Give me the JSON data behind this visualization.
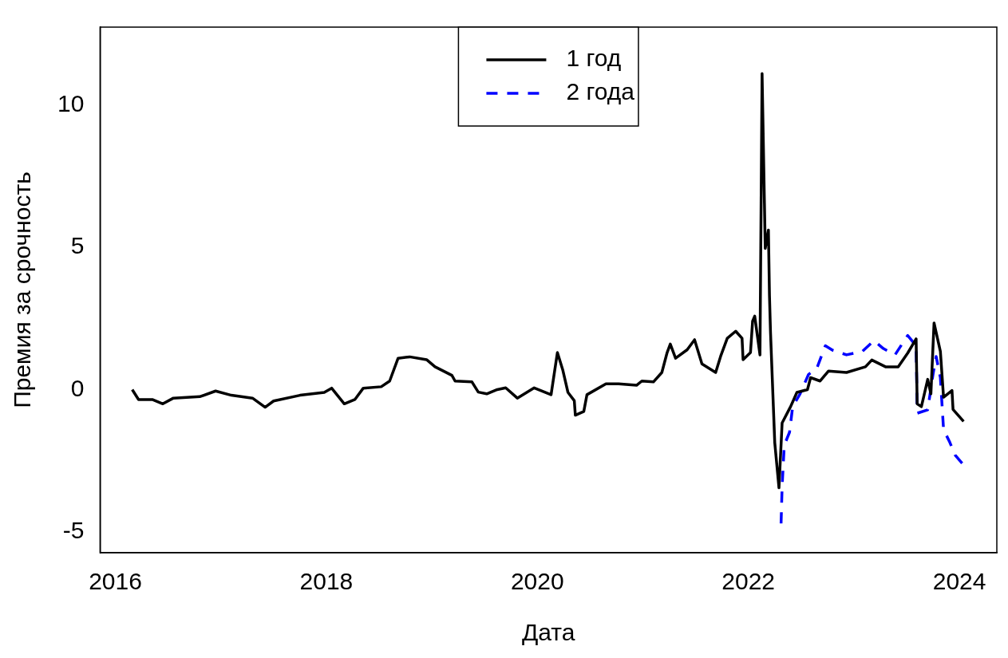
{
  "chart_data": {
    "type": "line",
    "xlabel": "Дата",
    "ylabel": "Премия за срочность",
    "xlim": [
      2015.855,
      2024.355
    ],
    "ylim": [
      -5.73,
      12.73
    ],
    "xticks": [
      2016,
      2018,
      2020,
      2022,
      2024
    ],
    "yticks": [
      -5,
      0,
      5,
      10
    ],
    "grid": false,
    "legend": "top",
    "marker": "none",
    "series": [
      {
        "name": "1 год",
        "color": "#000000",
        "line_style": "solid",
        "x": [
          2016.16,
          2016.22,
          2016.35,
          2016.45,
          2016.55,
          2016.8,
          2016.95,
          2017.1,
          2017.3,
          2017.42,
          2017.5,
          2017.75,
          2017.98,
          2018.05,
          2018.17,
          2018.27,
          2018.35,
          2018.52,
          2018.6,
          2018.68,
          2018.79,
          2018.95,
          2019.03,
          2019.19,
          2019.22,
          2019.38,
          2019.44,
          2019.52,
          2019.62,
          2019.7,
          2019.81,
          2019.97,
          2020.13,
          2020.19,
          2020.24,
          2020.29,
          2020.35,
          2020.36,
          2020.44,
          2020.47,
          2020.65,
          2020.77,
          2020.94,
          2020.99,
          2021.1,
          2021.18,
          2021.23,
          2021.26,
          2021.31,
          2021.42,
          2021.49,
          2021.56,
          2021.69,
          2021.74,
          2021.8,
          2021.88,
          2021.94,
          2021.95,
          2022.02,
          2022.04,
          2022.06,
          2022.11,
          2022.13,
          2022.16,
          2022.19,
          2022.2,
          2022.21,
          2022.25,
          2022.29,
          2022.32,
          2022.4,
          2022.46,
          2022.56,
          2022.59,
          2022.68,
          2022.76,
          2022.93,
          2023.11,
          2023.17,
          2023.3,
          2023.42,
          2023.51,
          2023.59,
          2023.6,
          2023.64,
          2023.7,
          2023.73,
          2023.76,
          2023.82,
          2023.85,
          2023.93,
          2023.94,
          2024.04
        ],
        "values": [
          0.0,
          -0.35,
          -0.35,
          -0.5,
          -0.3,
          -0.25,
          -0.05,
          -0.2,
          -0.3,
          -0.62,
          -0.4,
          -0.2,
          -0.1,
          0.05,
          -0.5,
          -0.35,
          0.05,
          0.1,
          0.3,
          1.1,
          1.15,
          1.05,
          0.8,
          0.5,
          0.3,
          0.27,
          -0.09,
          -0.15,
          0.0,
          0.06,
          -0.3,
          0.06,
          -0.18,
          1.3,
          0.7,
          -0.1,
          -0.39,
          -0.9,
          -0.77,
          -0.18,
          0.2,
          0.2,
          0.15,
          0.3,
          0.27,
          0.6,
          1.3,
          1.6,
          1.1,
          1.4,
          1.75,
          0.9,
          0.6,
          1.2,
          1.8,
          2.05,
          1.8,
          1.05,
          1.3,
          2.4,
          2.58,
          1.22,
          11.1,
          4.96,
          5.6,
          3.3,
          2.0,
          -1.86,
          -3.45,
          -1.17,
          -0.6,
          -0.1,
          0.0,
          0.42,
          0.3,
          0.65,
          0.6,
          0.8,
          1.04,
          0.8,
          0.8,
          1.28,
          1.78,
          -0.5,
          -0.6,
          0.36,
          -0.15,
          2.34,
          1.34,
          -0.27,
          -0.03,
          -0.7,
          -1.12
        ]
      },
      {
        "name": "2 года",
        "color": "#0000ff",
        "line_style": "dashed",
        "x": [
          2022.31,
          2022.32,
          2022.34,
          2022.39,
          2022.42,
          2022.49,
          2022.57,
          2022.65,
          2022.73,
          2022.8,
          2022.93,
          2023.08,
          2023.19,
          2023.28,
          2023.39,
          2023.51,
          2023.59,
          2023.6,
          2023.7,
          2023.75,
          2023.78,
          2023.82,
          2023.85,
          2023.91,
          2023.96,
          2024.04
        ],
        "values": [
          -4.7,
          -3.4,
          -1.96,
          -1.5,
          -0.6,
          -0.15,
          0.53,
          0.76,
          1.54,
          1.38,
          1.22,
          1.34,
          1.72,
          1.44,
          1.22,
          1.9,
          1.54,
          -0.83,
          -0.71,
          0.53,
          1.16,
          0.42,
          -1.4,
          -1.86,
          -2.3,
          -2.65
        ]
      }
    ]
  }
}
